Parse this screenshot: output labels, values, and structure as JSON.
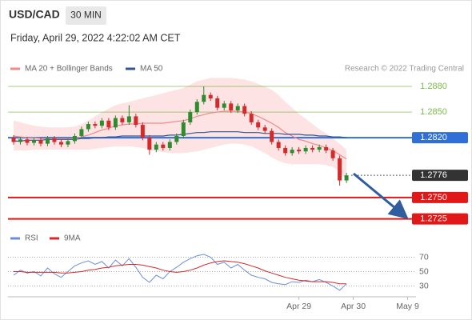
{
  "chart_data": [
    {
      "type": "candlestick",
      "title": "USD/CAD",
      "timeframe": "30 MIN",
      "subtitle": "Friday, April 29, 2022 4:22:02 AM CET",
      "source": "Research © 2022 Trading Central",
      "up_color": "#2e8b2e",
      "down_color": "#d42a2a",
      "xlim": [
        -1,
        59
      ],
      "ylim": [
        1.2705,
        1.2895
      ],
      "open": [
        1.282,
        1.2815,
        1.2818,
        1.2814,
        1.2817,
        1.2813,
        1.2819,
        1.2815,
        1.2812,
        1.2816,
        1.2822,
        1.283,
        1.2836,
        1.2834,
        1.284,
        1.2832,
        1.2843,
        1.2838,
        1.2845,
        1.2835,
        1.282,
        1.2806,
        1.2812,
        1.2808,
        1.2815,
        1.2822,
        1.2838,
        1.285,
        1.2862,
        1.287,
        1.2866,
        1.2855,
        1.286,
        1.2852,
        1.2857,
        1.2848,
        1.2838,
        1.2832,
        1.2828,
        1.2815,
        1.2808,
        1.2802,
        1.2806,
        1.2804,
        1.2808,
        1.2806,
        1.2809,
        1.2805,
        1.2796,
        1.277
      ],
      "high": [
        1.2823,
        1.2821,
        1.2821,
        1.282,
        1.282,
        1.2822,
        1.2822,
        1.2818,
        1.2819,
        1.2825,
        1.2833,
        1.2839,
        1.2839,
        1.2843,
        1.2843,
        1.2846,
        1.2846,
        1.2858,
        1.2848,
        1.2838,
        1.2823,
        1.2815,
        1.2815,
        1.2818,
        1.2825,
        1.2841,
        1.2853,
        1.2865,
        1.288,
        1.2873,
        1.2869,
        1.2863,
        1.2863,
        1.286,
        1.286,
        1.2851,
        1.2841,
        1.2835,
        1.2831,
        1.2818,
        1.2811,
        1.2809,
        1.2809,
        1.2811,
        1.2811,
        1.2812,
        1.2812,
        1.2808,
        1.2799,
        1.2779
      ],
      "low": [
        1.2812,
        1.2812,
        1.2811,
        1.2811,
        1.281,
        1.281,
        1.2812,
        1.2809,
        1.2809,
        1.2813,
        1.2819,
        1.2827,
        1.2831,
        1.2831,
        1.2829,
        1.2829,
        1.2835,
        1.2835,
        1.2832,
        1.2817,
        1.28,
        1.2803,
        1.2805,
        1.2805,
        1.2812,
        1.2819,
        1.2835,
        1.2847,
        1.2859,
        1.2863,
        1.2852,
        1.2852,
        1.2849,
        1.2849,
        1.2845,
        1.2835,
        1.2829,
        1.2825,
        1.2812,
        1.2805,
        1.2799,
        1.2799,
        1.2801,
        1.2801,
        1.2803,
        1.2803,
        1.2802,
        1.2793,
        1.2764,
        1.2767
      ],
      "close": [
        1.2815,
        1.2818,
        1.2814,
        1.2817,
        1.2813,
        1.2819,
        1.2815,
        1.2812,
        1.2816,
        1.2822,
        1.283,
        1.2836,
        1.2834,
        1.284,
        1.2832,
        1.2843,
        1.2838,
        1.2845,
        1.2835,
        1.282,
        1.2806,
        1.2812,
        1.2808,
        1.2815,
        1.2822,
        1.2838,
        1.285,
        1.2862,
        1.287,
        1.2866,
        1.2855,
        1.286,
        1.2852,
        1.2857,
        1.2848,
        1.2838,
        1.2832,
        1.2828,
        1.2815,
        1.2808,
        1.2802,
        1.2806,
        1.2804,
        1.2808,
        1.2806,
        1.2809,
        1.2805,
        1.2796,
        1.277,
        1.2776
      ],
      "series": [
        {
          "name": "MA 20 + Bollinger Bands",
          "color": "#f08a8a",
          "band_color": "#fde3e3",
          "values": [
            1.2822,
            1.2821,
            1.282,
            1.282,
            1.2819,
            1.2819,
            1.2819,
            1.2819,
            1.2819,
            1.2819,
            1.2821,
            1.2823,
            1.2826,
            1.2829,
            1.2831,
            1.2834,
            1.2835,
            1.2836,
            1.2836,
            1.2837,
            1.2837,
            1.2837,
            1.2837,
            1.2838,
            1.2839,
            1.284,
            1.2842,
            1.2845,
            1.2847,
            1.2849,
            1.285,
            1.2851,
            1.2851,
            1.2851,
            1.285,
            1.2848,
            1.2845,
            1.2841,
            1.2837,
            1.2832,
            1.2826,
            1.2822,
            1.2818,
            1.2816,
            1.2813,
            1.2811,
            1.2808,
            1.2805,
            1.28,
            1.2795
          ],
          "upper": [
            1.284,
            1.2838,
            1.2836,
            1.2834,
            1.2833,
            1.2832,
            1.2832,
            1.2832,
            1.2832,
            1.2833,
            1.2836,
            1.284,
            1.2845,
            1.285,
            1.2854,
            1.2858,
            1.286,
            1.2862,
            1.2864,
            1.2866,
            1.2868,
            1.287,
            1.2872,
            1.2874,
            1.2876,
            1.2878,
            1.2882,
            1.2886,
            1.2888,
            1.289,
            1.289,
            1.289,
            1.289,
            1.2889,
            1.2888,
            1.2886,
            1.2883,
            1.288,
            1.2876,
            1.287,
            1.2862,
            1.2855,
            1.2848,
            1.2842,
            1.2836,
            1.283,
            1.2825,
            1.2819,
            1.2813,
            1.2806
          ],
          "lower": [
            1.2805,
            1.2805,
            1.2805,
            1.2806,
            1.2806,
            1.2806,
            1.2806,
            1.2806,
            1.2806,
            1.2806,
            1.2806,
            1.2806,
            1.2807,
            1.2808,
            1.2809,
            1.281,
            1.281,
            1.281,
            1.2809,
            1.2808,
            1.2806,
            1.2804,
            1.2803,
            1.2802,
            1.2802,
            1.2802,
            1.2803,
            1.2804,
            1.2806,
            1.2808,
            1.281,
            1.2812,
            1.2813,
            1.2813,
            1.2812,
            1.281,
            1.2806,
            1.2802,
            1.2797,
            1.2793,
            1.279,
            1.2789,
            1.2789,
            1.2789,
            1.2789,
            1.2789,
            1.2788,
            1.2786,
            1.278,
            1.277
          ]
        },
        {
          "name": "MA 50",
          "color": "#35558f",
          "values": [
            1.2816,
            1.2816,
            1.2817,
            1.2817,
            1.2817,
            1.2818,
            1.2818,
            1.2818,
            1.2818,
            1.2818,
            1.2819,
            1.2819,
            1.282,
            1.282,
            1.2821,
            1.2821,
            1.2822,
            1.2822,
            1.2822,
            1.2822,
            1.2822,
            1.2822,
            1.2822,
            1.2823,
            1.2823,
            1.2824,
            1.2825,
            1.2826,
            1.2826,
            1.2827,
            1.2827,
            1.2827,
            1.2827,
            1.2827,
            1.2826,
            1.2826,
            1.2826,
            1.2825,
            1.2825,
            1.2825,
            1.2824,
            1.2824,
            1.2824,
            1.2823,
            1.2823,
            1.2822,
            1.2822,
            1.2821,
            1.2821,
            1.282
          ]
        }
      ],
      "levels": [
        {
          "value": 1.288,
          "label": "1.2880",
          "color": "#7cbb4a",
          "box": false,
          "dash": false
        },
        {
          "value": 1.285,
          "label": "1.2850",
          "color": "#7cbb4a",
          "box": false,
          "dash": false
        },
        {
          "value": 1.282,
          "label": "1.2820",
          "color": "#2f6fd6",
          "box": true,
          "dash": false
        },
        {
          "value": 1.2776,
          "label": "1.2776",
          "color": "#333333",
          "box": true,
          "dash": true
        },
        {
          "value": 1.275,
          "label": "1.2750",
          "color": "#e01818",
          "box": true,
          "dash": false
        },
        {
          "value": 1.2725,
          "label": "1.2725",
          "color": "#e01818",
          "box": true,
          "dash": false
        }
      ]
    },
    {
      "type": "line",
      "xlim": [
        -1,
        59
      ],
      "ylim": [
        15,
        85
      ],
      "yticks": [
        30,
        50,
        70
      ],
      "xticks": [
        {
          "value": 42,
          "label": "Apr 29"
        },
        {
          "value": 50,
          "label": "Apr 30"
        },
        {
          "value": 58,
          "label": "May 9"
        }
      ],
      "series": [
        {
          "name": "RSI",
          "color": "#6b8fd6",
          "values": [
            45,
            52,
            48,
            50,
            44,
            55,
            47,
            42,
            50,
            58,
            62,
            65,
            60,
            64,
            55,
            66,
            58,
            68,
            56,
            42,
            35,
            45,
            40,
            50,
            56,
            63,
            68,
            72,
            74,
            70,
            60,
            63,
            55,
            60,
            52,
            45,
            42,
            40,
            35,
            33,
            32,
            36,
            35,
            38,
            36,
            39,
            35,
            30,
            24,
            33
          ]
        },
        {
          "name": "9MA",
          "color": "#d42a2a",
          "values": [
            50,
            50,
            49,
            49,
            49,
            49,
            49,
            48,
            48,
            49,
            50,
            52,
            53,
            55,
            56,
            58,
            59,
            60,
            60,
            59,
            57,
            55,
            52,
            50,
            49,
            50,
            52,
            55,
            59,
            62,
            64,
            65,
            64,
            63,
            61,
            58,
            55,
            51,
            48,
            45,
            42,
            40,
            38,
            37,
            36,
            36,
            36,
            35,
            33,
            33
          ]
        }
      ]
    }
  ]
}
